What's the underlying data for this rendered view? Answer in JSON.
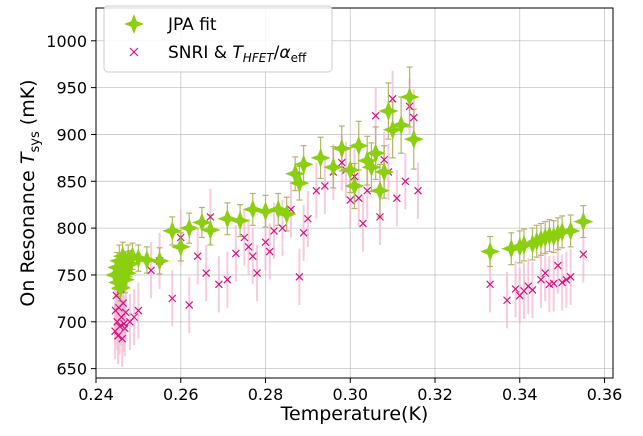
{
  "chart_data": {
    "type": "scatter",
    "title": "",
    "xlabel": "Temperature(K)",
    "ylabel": {
      "prefix": "On Resonance ",
      "var": "T",
      "sub": "sys",
      "suffix": " (mK)"
    },
    "xlim": [
      0.24,
      0.362
    ],
    "ylim": [
      640,
      1035
    ],
    "x_ticks": [
      0.24,
      0.26,
      0.28,
      0.3,
      0.32,
      0.34,
      0.36
    ],
    "x_tick_labels": [
      "0.24",
      "0.26",
      "0.28",
      "0.30",
      "0.32",
      "0.34",
      "0.36"
    ],
    "y_ticks": [
      650,
      700,
      750,
      800,
      850,
      900,
      950,
      1000
    ],
    "y_tick_labels": [
      "650",
      "700",
      "750",
      "800",
      "850",
      "900",
      "950",
      "1000"
    ],
    "grid": true,
    "legend_position": "top-left",
    "colors": {
      "jpa": "#8ccf10",
      "jpa_err": "#b5b56a",
      "snri": "#d4137f",
      "snri_err": "#f5b8d4"
    },
    "series": [
      {
        "name": "JPA fit",
        "marker": "diamond-star",
        "points": [
          [
            0.2445,
            750,
            15
          ],
          [
            0.245,
            758,
            16
          ],
          [
            0.2452,
            742,
            15
          ],
          [
            0.2455,
            765,
            17
          ],
          [
            0.2458,
            736,
            14
          ],
          [
            0.246,
            748,
            15
          ],
          [
            0.2463,
            770,
            15
          ],
          [
            0.2465,
            755,
            15
          ],
          [
            0.2468,
            745,
            14
          ],
          [
            0.247,
            760,
            15
          ],
          [
            0.2473,
            752,
            15
          ],
          [
            0.2476,
            767,
            15
          ],
          [
            0.248,
            762,
            14
          ],
          [
            0.2486,
            770,
            14
          ],
          [
            0.25,
            768,
            14
          ],
          [
            0.252,
            766,
            14
          ],
          [
            0.255,
            765,
            14
          ],
          [
            0.258,
            797,
            15
          ],
          [
            0.26,
            780,
            15
          ],
          [
            0.262,
            800,
            16
          ],
          [
            0.265,
            806,
            16
          ],
          [
            0.267,
            798,
            16
          ],
          [
            0.271,
            810,
            17
          ],
          [
            0.274,
            808,
            17
          ],
          [
            0.277,
            820,
            17
          ],
          [
            0.28,
            818,
            17
          ],
          [
            0.283,
            820,
            17
          ],
          [
            0.285,
            815,
            18
          ],
          [
            0.287,
            858,
            18
          ],
          [
            0.288,
            848,
            18
          ],
          [
            0.289,
            868,
            20
          ],
          [
            0.293,
            875,
            22
          ],
          [
            0.296,
            865,
            22
          ],
          [
            0.298,
            885,
            24
          ],
          [
            0.3,
            862,
            24
          ],
          [
            0.301,
            845,
            24
          ],
          [
            0.302,
            888,
            26
          ],
          [
            0.304,
            872,
            26
          ],
          [
            0.305,
            865,
            26
          ],
          [
            0.306,
            880,
            28
          ],
          [
            0.307,
            840,
            28
          ],
          [
            0.308,
            860,
            28
          ],
          [
            0.309,
            925,
            30
          ],
          [
            0.31,
            905,
            30
          ],
          [
            0.312,
            910,
            30
          ],
          [
            0.314,
            940,
            32
          ],
          [
            0.315,
            895,
            32
          ],
          [
            0.333,
            775,
            16
          ],
          [
            0.338,
            778,
            17
          ],
          [
            0.34,
            780,
            17
          ],
          [
            0.341,
            782,
            17
          ],
          [
            0.343,
            783,
            17
          ],
          [
            0.344,
            786,
            17
          ],
          [
            0.345,
            788,
            17
          ],
          [
            0.346,
            790,
            17
          ],
          [
            0.347,
            792,
            17
          ],
          [
            0.348,
            791,
            17
          ],
          [
            0.349,
            794,
            17
          ],
          [
            0.35,
            796,
            17
          ],
          [
            0.352,
            797,
            17
          ],
          [
            0.355,
            807,
            17
          ]
        ]
      },
      {
        "name": "SNRI & ",
        "name_var": "T",
        "name_sub": "HFET",
        "name_div": "α",
        "name_div_sub": "eff",
        "marker": "x",
        "points": [
          [
            0.2445,
            690,
            30
          ],
          [
            0.2446,
            712,
            30
          ],
          [
            0.2448,
            728,
            30
          ],
          [
            0.245,
            700,
            30
          ],
          [
            0.2452,
            685,
            30
          ],
          [
            0.2454,
            715,
            30
          ],
          [
            0.2456,
            695,
            30
          ],
          [
            0.2458,
            735,
            30
          ],
          [
            0.246,
            705,
            30
          ],
          [
            0.2462,
            682,
            30
          ],
          [
            0.2464,
            720,
            30
          ],
          [
            0.2466,
            698,
            30
          ],
          [
            0.2468,
            693,
            30
          ],
          [
            0.247,
            710,
            30
          ],
          [
            0.248,
            700,
            30
          ],
          [
            0.249,
            705,
            30
          ],
          [
            0.25,
            712,
            30
          ],
          [
            0.253,
            755,
            30
          ],
          [
            0.255,
            765,
            30
          ],
          [
            0.258,
            725,
            30
          ],
          [
            0.26,
            790,
            30
          ],
          [
            0.262,
            718,
            30
          ],
          [
            0.264,
            770,
            30
          ],
          [
            0.266,
            752,
            30
          ],
          [
            0.267,
            812,
            30
          ],
          [
            0.269,
            740,
            30
          ],
          [
            0.271,
            745,
            30
          ],
          [
            0.273,
            773,
            30
          ],
          [
            0.275,
            790,
            30
          ],
          [
            0.276,
            780,
            30
          ],
          [
            0.277,
            770,
            30
          ],
          [
            0.278,
            752,
            30
          ],
          [
            0.28,
            785,
            30
          ],
          [
            0.281,
            775,
            30
          ],
          [
            0.282,
            797,
            30
          ],
          [
            0.284,
            800,
            30
          ],
          [
            0.286,
            820,
            30
          ],
          [
            0.288,
            748,
            30
          ],
          [
            0.289,
            795,
            30
          ],
          [
            0.29,
            810,
            30
          ],
          [
            0.292,
            840,
            30
          ],
          [
            0.294,
            845,
            30
          ],
          [
            0.296,
            860,
            30
          ],
          [
            0.298,
            870,
            30
          ],
          [
            0.299,
            862,
            30
          ],
          [
            0.3,
            830,
            30
          ],
          [
            0.301,
            855,
            30
          ],
          [
            0.302,
            832,
            30
          ],
          [
            0.303,
            805,
            30
          ],
          [
            0.304,
            840,
            30
          ],
          [
            0.306,
            920,
            30
          ],
          [
            0.307,
            812,
            30
          ],
          [
            0.308,
            873,
            30
          ],
          [
            0.309,
            860,
            30
          ],
          [
            0.31,
            938,
            30
          ],
          [
            0.311,
            832,
            30
          ],
          [
            0.313,
            850,
            30
          ],
          [
            0.314,
            930,
            30
          ],
          [
            0.315,
            918,
            30
          ],
          [
            0.316,
            840,
            30
          ],
          [
            0.333,
            740,
            30
          ],
          [
            0.337,
            723,
            30
          ],
          [
            0.339,
            735,
            30
          ],
          [
            0.34,
            728,
            30
          ],
          [
            0.341,
            733,
            30
          ],
          [
            0.342,
            738,
            30
          ],
          [
            0.343,
            734,
            30
          ],
          [
            0.345,
            745,
            30
          ],
          [
            0.346,
            752,
            30
          ],
          [
            0.347,
            740,
            30
          ],
          [
            0.348,
            741,
            30
          ],
          [
            0.349,
            760,
            30
          ],
          [
            0.35,
            742,
            30
          ],
          [
            0.351,
            745,
            30
          ],
          [
            0.352,
            748,
            30
          ],
          [
            0.355,
            772,
            30
          ]
        ]
      }
    ]
  }
}
